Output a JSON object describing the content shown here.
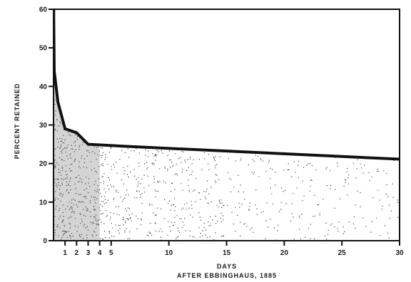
{
  "chart_data": {
    "type": "area",
    "xlabel": "DAYS",
    "ylabel": "PERCENT RETAINED",
    "caption": "AFTER EBBINGHAUS, 1885",
    "xlim": [
      0,
      30
    ],
    "ylim": [
      0,
      60
    ],
    "x_ticks": [
      1,
      2,
      3,
      4,
      5,
      10,
      15,
      20,
      25,
      30
    ],
    "x_tick_labels": [
      "1",
      "2",
      "3",
      "4",
      "5",
      "10",
      "15",
      "20",
      "25",
      "30"
    ],
    "y_ticks": [
      0,
      10,
      20,
      30,
      40,
      50,
      60
    ],
    "y_tick_labels": [
      "0",
      "10",
      "20",
      "30",
      "40",
      "50",
      "60"
    ],
    "grid": false,
    "series": [
      {
        "x": [
          0,
          0.02,
          0.06,
          0.375,
          1,
          2,
          3,
          6,
          31
        ],
        "y": [
          100,
          58,
          44,
          36,
          29,
          28,
          25,
          24.5,
          21
        ]
      }
    ],
    "colors": {
      "line": "#111111",
      "fill_dots": "#1a1a1a",
      "frame": "#111111"
    }
  }
}
